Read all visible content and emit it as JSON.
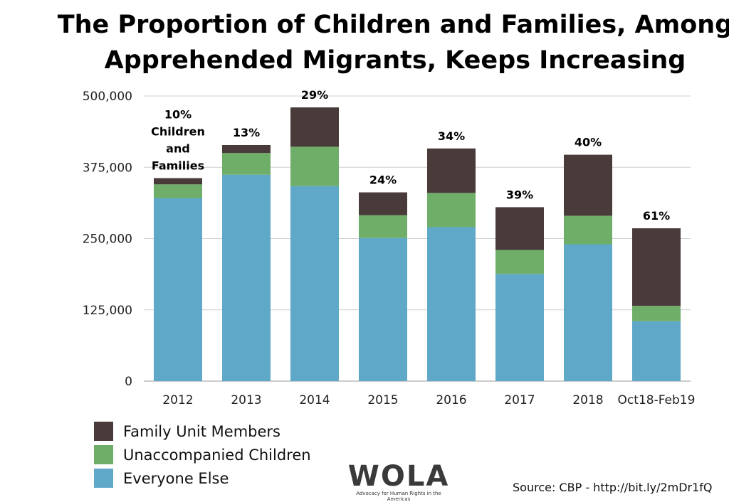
{
  "chart_data": {
    "type": "bar",
    "stacked": true,
    "title": "The Proportion of Children and Families, Among Apprehended Migrants, Keeps Increasing",
    "categories": [
      "2012",
      "2013",
      "2014",
      "2015",
      "2016",
      "2017",
      "2018",
      "Oct18-Feb19"
    ],
    "series": [
      {
        "name": "Everyone Else",
        "color": "#5fa8c8",
        "values": [
          321000,
          362000,
          342000,
          251000,
          270000,
          188000,
          240000,
          105000
        ]
      },
      {
        "name": "Unaccompanied Children",
        "color": "#6fae68",
        "values": [
          24000,
          38000,
          69000,
          40000,
          60000,
          42000,
          50000,
          27000
        ]
      },
      {
        "name": "Family Unit Members",
        "color": "#4a3b3b",
        "values": [
          11000,
          14000,
          69000,
          40000,
          78000,
          75000,
          107000,
          136000
        ]
      }
    ],
    "percent_labels": [
      "10%",
      "13%",
      "29%",
      "24%",
      "34%",
      "39%",
      "40%",
      "61%"
    ],
    "first_label_extra": [
      "Children",
      "and",
      "Families"
    ],
    "ylim": [
      0,
      500000
    ],
    "yticks": [
      0,
      125000,
      250000,
      375000,
      500000
    ],
    "ytick_labels": [
      "0",
      "125,000",
      "250,000",
      "375,000",
      "500,000"
    ],
    "grid": true,
    "legend_position": "bottom-left"
  },
  "legend": {
    "items": [
      {
        "label": "Family Unit Members",
        "color": "#4a3b3b"
      },
      {
        "label": "Unaccompanied Children",
        "color": "#6fae68"
      },
      {
        "label": "Everyone Else",
        "color": "#5fa8c8"
      }
    ]
  },
  "logo": {
    "word": "WOLA",
    "tagline": "Advocacy for Human Rights in the Americas"
  },
  "source": "Source: CBP - http://bit.ly/2mDr1fQ"
}
